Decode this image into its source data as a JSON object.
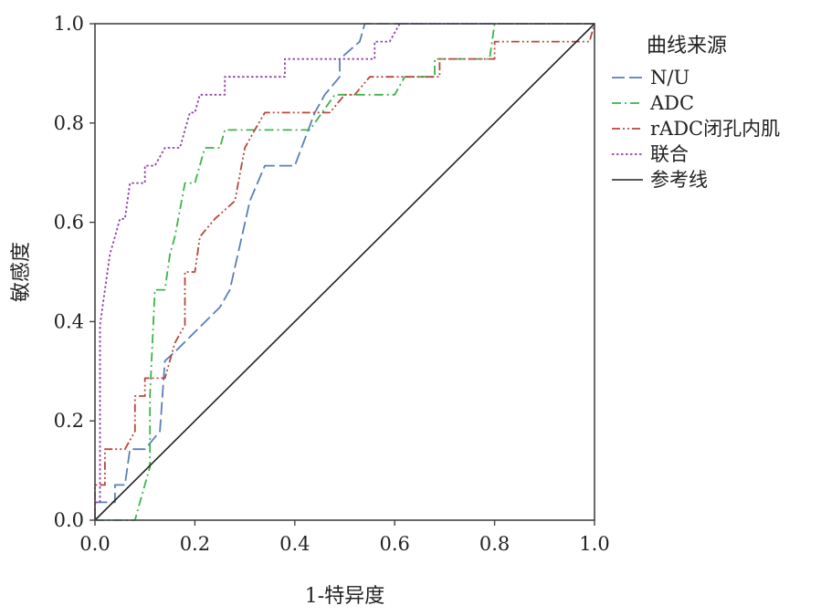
{
  "chart_data": {
    "type": "line",
    "title": "",
    "xlabel": "1-特异度",
    "ylabel": "敏感度",
    "xlim": [
      0,
      1
    ],
    "ylim": [
      0,
      1
    ],
    "xticks": [
      "0.0",
      "0.2",
      "0.4",
      "0.6",
      "0.8",
      "1.0"
    ],
    "yticks": [
      "0.0",
      "0.2",
      "0.4",
      "0.6",
      "0.8",
      "1.0"
    ],
    "grid": false,
    "legend": {
      "title": "曲线来源",
      "placement": "right"
    },
    "series": [
      {
        "name": "N/U",
        "color": "#5b7fb8",
        "dash": "long-dash",
        "points": [
          [
            0,
            0
          ],
          [
            0,
            0.036
          ],
          [
            0.04,
            0.036
          ],
          [
            0.04,
            0.071
          ],
          [
            0.06,
            0.071
          ],
          [
            0.07,
            0.143
          ],
          [
            0.1,
            0.143
          ],
          [
            0.13,
            0.179
          ],
          [
            0.14,
            0.321
          ],
          [
            0.16,
            0.339
          ],
          [
            0.25,
            0.429
          ],
          [
            0.27,
            0.464
          ],
          [
            0.31,
            0.643
          ],
          [
            0.34,
            0.714
          ],
          [
            0.4,
            0.714
          ],
          [
            0.44,
            0.821
          ],
          [
            0.46,
            0.857
          ],
          [
            0.49,
            0.893
          ],
          [
            0.49,
            0.929
          ],
          [
            0.53,
            0.964
          ],
          [
            0.54,
            1.0
          ],
          [
            1.0,
            1.0
          ]
        ]
      },
      {
        "name": "ADC",
        "color": "#3cb44b",
        "dash": "dash-dot",
        "points": [
          [
            0,
            0
          ],
          [
            0.08,
            0
          ],
          [
            0.09,
            0.036
          ],
          [
            0.11,
            0.107
          ],
          [
            0.11,
            0.25
          ],
          [
            0.12,
            0.464
          ],
          [
            0.14,
            0.464
          ],
          [
            0.15,
            0.536
          ],
          [
            0.16,
            0.571
          ],
          [
            0.18,
            0.679
          ],
          [
            0.2,
            0.679
          ],
          [
            0.22,
            0.75
          ],
          [
            0.25,
            0.75
          ],
          [
            0.26,
            0.786
          ],
          [
            0.43,
            0.786
          ],
          [
            0.48,
            0.857
          ],
          [
            0.6,
            0.857
          ],
          [
            0.62,
            0.893
          ],
          [
            0.68,
            0.893
          ],
          [
            0.68,
            0.929
          ],
          [
            0.79,
            0.929
          ],
          [
            0.8,
            1.0
          ],
          [
            1.0,
            1.0
          ]
        ]
      },
      {
        "name": "rADC闭孔内肌",
        "color": "#b8473f",
        "dash": "dash-dot-dot",
        "points": [
          [
            0,
            0
          ],
          [
            0,
            0.071
          ],
          [
            0.02,
            0.071
          ],
          [
            0.02,
            0.143
          ],
          [
            0.06,
            0.143
          ],
          [
            0.08,
            0.179
          ],
          [
            0.08,
            0.25
          ],
          [
            0.1,
            0.25
          ],
          [
            0.1,
            0.286
          ],
          [
            0.14,
            0.286
          ],
          [
            0.16,
            0.357
          ],
          [
            0.18,
            0.393
          ],
          [
            0.18,
            0.5
          ],
          [
            0.2,
            0.5
          ],
          [
            0.21,
            0.571
          ],
          [
            0.24,
            0.607
          ],
          [
            0.28,
            0.643
          ],
          [
            0.3,
            0.75
          ],
          [
            0.32,
            0.786
          ],
          [
            0.34,
            0.821
          ],
          [
            0.47,
            0.821
          ],
          [
            0.5,
            0.857
          ],
          [
            0.52,
            0.857
          ],
          [
            0.55,
            0.893
          ],
          [
            0.69,
            0.893
          ],
          [
            0.69,
            0.929
          ],
          [
            0.8,
            0.929
          ],
          [
            0.8,
            0.964
          ],
          [
            0.99,
            0.964
          ],
          [
            1.0,
            1.0
          ]
        ]
      },
      {
        "name": "联合",
        "color": "#8e44ad",
        "dash": "dotted",
        "points": [
          [
            0,
            0
          ],
          [
            0,
            0.036
          ],
          [
            0.01,
            0.036
          ],
          [
            0.01,
            0.393
          ],
          [
            0.02,
            0.464
          ],
          [
            0.03,
            0.536
          ],
          [
            0.04,
            0.571
          ],
          [
            0.05,
            0.607
          ],
          [
            0.06,
            0.607
          ],
          [
            0.07,
            0.679
          ],
          [
            0.1,
            0.679
          ],
          [
            0.1,
            0.714
          ],
          [
            0.12,
            0.714
          ],
          [
            0.14,
            0.75
          ],
          [
            0.17,
            0.75
          ],
          [
            0.19,
            0.821
          ],
          [
            0.2,
            0.821
          ],
          [
            0.21,
            0.857
          ],
          [
            0.26,
            0.857
          ],
          [
            0.26,
            0.893
          ],
          [
            0.38,
            0.893
          ],
          [
            0.38,
            0.929
          ],
          [
            0.56,
            0.929
          ],
          [
            0.56,
            0.964
          ],
          [
            0.59,
            0.964
          ],
          [
            0.61,
            1.0
          ],
          [
            1.0,
            1.0
          ]
        ]
      },
      {
        "name": "参考线",
        "color": "#222222",
        "dash": "solid",
        "points": [
          [
            0,
            0
          ],
          [
            1,
            1
          ]
        ]
      }
    ]
  }
}
